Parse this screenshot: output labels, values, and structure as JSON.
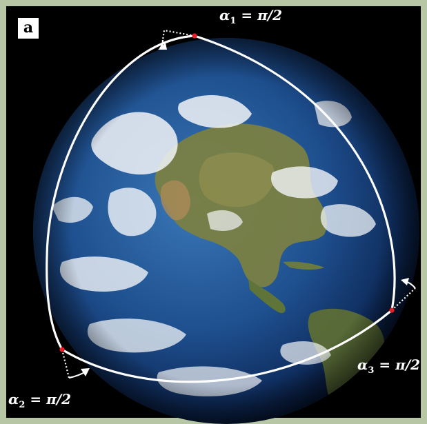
{
  "panel": {
    "label": "a"
  },
  "angles": [
    {
      "symbol": "α",
      "index": "1",
      "equation": " = π/2"
    },
    {
      "symbol": "α",
      "index": "2",
      "equation": " = π/2"
    },
    {
      "symbol": "α",
      "index": "3",
      "equation": " = π/2"
    }
  ],
  "colors": {
    "frame": "#b7c7a6",
    "background": "#000000",
    "triangle": "#ffffff",
    "vertex": "#e8202a",
    "ocean": "#1d4c8c",
    "land": "#6f7a3f",
    "clouds": "#f4f6f8"
  }
}
